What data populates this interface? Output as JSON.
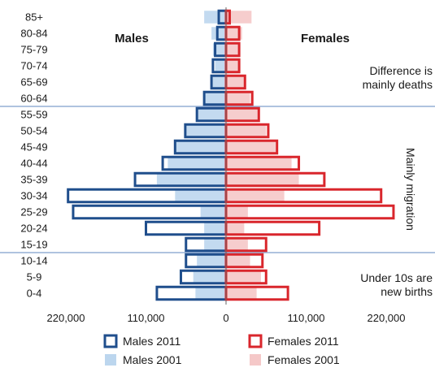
{
  "chart_data": {
    "type": "bar",
    "orientation": "horizontal-population-pyramid",
    "categories": [
      "85+",
      "80-84",
      "75-79",
      "70-74",
      "65-69",
      "60-64",
      "55-59",
      "50-54",
      "45-49",
      "40-44",
      "35-39",
      "30-34",
      "25-29",
      "20-24",
      "15-19",
      "10-14",
      "5-9",
      "0-4"
    ],
    "series": [
      {
        "name": "Males 2011",
        "side": "left",
        "style": "outline",
        "color": "#1f4e8c",
        "values": [
          10000,
          12000,
          15000,
          18000,
          20000,
          30000,
          40000,
          56000,
          70000,
          87000,
          125000,
          217000,
          210000,
          110000,
          55000,
          55000,
          62000,
          95000
        ]
      },
      {
        "name": "Males 2001",
        "side": "left",
        "style": "filled",
        "color": "#bcd6ee",
        "values": [
          30000,
          20000,
          18000,
          15000,
          20000,
          30000,
          40000,
          55000,
          70000,
          80000,
          95000,
          70000,
          35000,
          30000,
          30000,
          40000,
          45000,
          42000
        ]
      },
      {
        "name": "Females 2011",
        "side": "right",
        "style": "outline",
        "color": "#d9262c",
        "values": [
          5000,
          18000,
          18000,
          18000,
          26000,
          36000,
          45000,
          58000,
          70000,
          100000,
          135000,
          213000,
          230000,
          128000,
          55000,
          50000,
          55000,
          85000
        ]
      },
      {
        "name": "Females 2001",
        "side": "right",
        "style": "filled",
        "color": "#f5c8c8",
        "values": [
          35000,
          22000,
          18000,
          18000,
          26000,
          33000,
          45000,
          55000,
          68000,
          90000,
          100000,
          80000,
          30000,
          25000,
          30000,
          33000,
          48000,
          42000
        ]
      }
    ],
    "xlim": [
      -220000,
      220000
    ],
    "x_ticks": [
      "220,000",
      "110,000",
      "0",
      "110,000",
      "220,000"
    ],
    "x_tick_values": [
      -220000,
      -110000,
      0,
      110000,
      220000
    ],
    "side_labels": {
      "left": "Males",
      "right": "Females"
    },
    "annotations": [
      {
        "text_lines": [
          "Difference is",
          "mainly deaths"
        ],
        "rows": [
          "85+",
          "60-64"
        ]
      },
      {
        "text": "Mainly migration",
        "rows": [
          "55-59",
          "15-19"
        ],
        "rotated": true
      },
      {
        "text_lines": [
          "Under 10s are",
          "new births"
        ],
        "rows": [
          "10-14",
          "0-4"
        ]
      }
    ],
    "divider_lines_between": [
      [
        "60-64",
        "55-59"
      ],
      [
        "15-19",
        "10-14"
      ]
    ],
    "legend_position": "bottom",
    "grid": false
  }
}
